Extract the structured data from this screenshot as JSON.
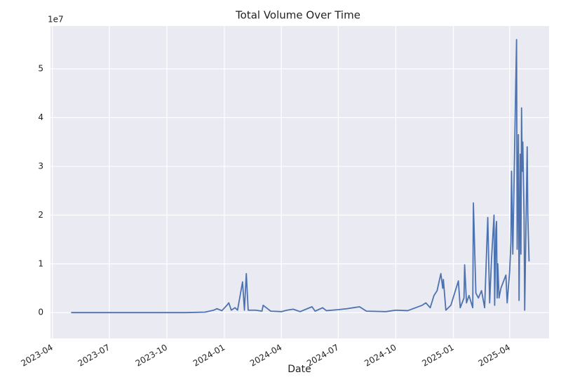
{
  "chart_data": {
    "type": "line",
    "title": "Total Volume Over Time",
    "x_label": "Date",
    "y_offset_label": "1e7",
    "x": [
      "2023-05-01",
      "2023-07-01",
      "2023-09-01",
      "2023-11-01",
      "2023-12-01",
      "2023-12-15",
      "2023-12-20",
      "2023-12-28",
      "2024-01-05",
      "2024-01-08",
      "2024-01-12",
      "2024-01-18",
      "2024-01-22",
      "2024-01-30",
      "2024-02-02",
      "2024-02-05",
      "2024-02-08",
      "2024-02-20",
      "2024-03-01",
      "2024-03-03",
      "2024-03-15",
      "2024-04-01",
      "2024-04-10",
      "2024-04-20",
      "2024-05-01",
      "2024-05-20",
      "2024-05-25",
      "2024-06-06",
      "2024-06-12",
      "2024-07-01",
      "2024-07-15",
      "2024-08-04",
      "2024-08-15",
      "2024-09-15",
      "2024-10-01",
      "2024-10-20",
      "2024-11-12",
      "2024-11-18",
      "2024-11-25",
      "2024-12-01",
      "2024-12-06",
      "2024-12-12",
      "2024-12-15",
      "2024-12-16",
      "2024-12-20",
      "2024-12-28",
      "2025-01-09",
      "2025-01-12",
      "2025-01-18",
      "2025-01-19",
      "2025-01-22",
      "2025-01-26",
      "2025-02-01",
      "2025-02-02",
      "2025-02-06",
      "2025-02-10",
      "2025-02-15",
      "2025-02-20",
      "2025-02-25",
      "2025-02-28",
      "2025-03-03",
      "2025-03-07",
      "2025-03-08",
      "2025-03-10",
      "2025-03-11",
      "2025-03-12",
      "2025-03-13",
      "2025-03-15",
      "2025-03-18",
      "2025-03-26",
      "2025-03-28",
      "2025-04-01",
      "2025-04-03",
      "2025-04-04",
      "2025-04-06",
      "2025-04-12",
      "2025-04-13",
      "2025-04-15",
      "2025-04-16",
      "2025-04-18",
      "2025-04-19",
      "2025-04-20",
      "2025-04-21",
      "2025-04-22",
      "2025-04-24",
      "2025-04-25",
      "2025-04-29",
      "2025-04-30",
      "2025-05-02"
    ],
    "series": [
      {
        "name": "Total Volume",
        "color": "#4c72b0",
        "values": [
          0,
          0,
          0,
          0,
          0.01,
          0.05,
          0.08,
          0.04,
          0.15,
          0.2,
          0.05,
          0.1,
          0.05,
          0.63,
          0.05,
          0.8,
          0.05,
          0.05,
          0.03,
          0.15,
          0.03,
          0.02,
          0.05,
          0.07,
          0.02,
          0.12,
          0.03,
          0.1,
          0.04,
          0.06,
          0.08,
          0.12,
          0.03,
          0.02,
          0.05,
          0.04,
          0.15,
          0.2,
          0.1,
          0.35,
          0.45,
          0.8,
          0.5,
          0.68,
          0.05,
          0.15,
          0.65,
          0.1,
          0.3,
          0.98,
          0.2,
          0.35,
          0.1,
          2.25,
          0.4,
          0.3,
          0.45,
          0.1,
          1.95,
          0.2,
          1.1,
          2.0,
          0.15,
          1.7,
          1.87,
          0.3,
          1.0,
          0.3,
          0.5,
          0.77,
          0.2,
          0.85,
          1.45,
          2.9,
          1.2,
          5.6,
          1.3,
          3.65,
          0.25,
          3.25,
          1.2,
          4.2,
          2.9,
          3.5,
          2.0,
          0.05,
          3.4,
          2.0,
          1.05
        ]
      }
    ],
    "xlim": [
      "2023-03-29",
      "2025-06-03"
    ],
    "xticks": [
      "2023-04",
      "2023-07",
      "2023-10",
      "2024-01",
      "2024-04",
      "2024-07",
      "2024-10",
      "2025-01",
      "2025-04"
    ],
    "ylim": [
      -0.53,
      5.88
    ],
    "yticks": [
      0,
      1,
      2,
      3,
      4,
      5
    ],
    "grid": true
  }
}
